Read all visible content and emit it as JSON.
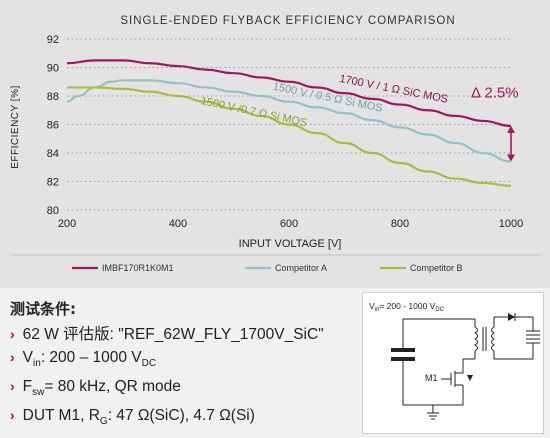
{
  "chart_data": {
    "type": "line",
    "title": "SINGLE-ENDED FLYBACK EFFICIENCY COMPARISON",
    "xlabel": "INPUT VOLTAGE [V]",
    "ylabel": "EFFICIENCY [%]",
    "xlim": [
      200,
      1000
    ],
    "ylim": [
      80,
      92
    ],
    "xticks": [
      200,
      400,
      600,
      800,
      1000
    ],
    "yticks": [
      80,
      82,
      84,
      86,
      88,
      90,
      92
    ],
    "grid": "horizontal dotted",
    "legend_position": "bottom",
    "series": [
      {
        "name": "IMBF170R1K0M1",
        "annotation": "1700 V / 1 Ω SiC MOS",
        "color": "#a3165f",
        "x": [
          200,
          250,
          300,
          350,
          400,
          450,
          500,
          550,
          600,
          650,
          700,
          750,
          800,
          850,
          900,
          950,
          1000
        ],
        "y": [
          90.3,
          90.5,
          90.5,
          90.3,
          90.1,
          89.85,
          89.6,
          89.3,
          89.0,
          88.6,
          88.2,
          87.8,
          87.4,
          87.0,
          86.6,
          86.25,
          85.9
        ]
      },
      {
        "name": "Competitor A",
        "annotation": "1500 V / 0.5 Ω Si MOS",
        "color": "#8fc4c8",
        "x": [
          200,
          220,
          250,
          280,
          300,
          350,
          400,
          450,
          500,
          550,
          600,
          650,
          700,
          750,
          800,
          850,
          900,
          950,
          1000
        ],
        "y": [
          87.6,
          88.0,
          88.6,
          89.0,
          89.1,
          89.1,
          88.9,
          88.6,
          88.3,
          88.0,
          87.6,
          87.2,
          86.8,
          86.3,
          85.8,
          85.3,
          84.7,
          84.0,
          83.4
        ]
      },
      {
        "name": "Competitor B",
        "annotation": "1500 V /0.7 Ω Si MOS",
        "color": "#a8bd3c",
        "x": [
          200,
          250,
          300,
          350,
          400,
          450,
          500,
          550,
          600,
          650,
          700,
          750,
          800,
          850,
          900,
          950,
          1000
        ],
        "y": [
          88.6,
          88.6,
          88.5,
          88.3,
          88.0,
          87.6,
          87.1,
          86.6,
          86.0,
          85.4,
          84.7,
          84.0,
          83.3,
          82.7,
          82.2,
          81.9,
          81.7
        ]
      }
    ],
    "delta_annotation": {
      "label": "Δ 2.5%",
      "x": 1000,
      "from": 83.4,
      "to": 85.9,
      "color": "#a3165f"
    }
  },
  "conditions": {
    "title": "测试条件:",
    "bullet": "›",
    "line1": "62 W 评估版: \"REF_62W_FLY_1700V_SiC\"",
    "line2_main": "V",
    "line2_sub": "in",
    "line2_rest": ": 200 – 1000 V",
    "line2_sub2": "DC",
    "line3_main": "F",
    "line3_sub": "sw",
    "line3_rest": "= 80 kHz, QR mode",
    "line4_main": "DUT M1, R",
    "line4_sub": "G",
    "line4_rest": ": 47 Ω(SiC), 4.7 Ω(Si)"
  },
  "schematic": {
    "vin_label": "V",
    "vin_sub": "in",
    "vin_value": "= 200 - 1000 V",
    "vin_value_sub": "DC",
    "switch_label": "M1"
  }
}
